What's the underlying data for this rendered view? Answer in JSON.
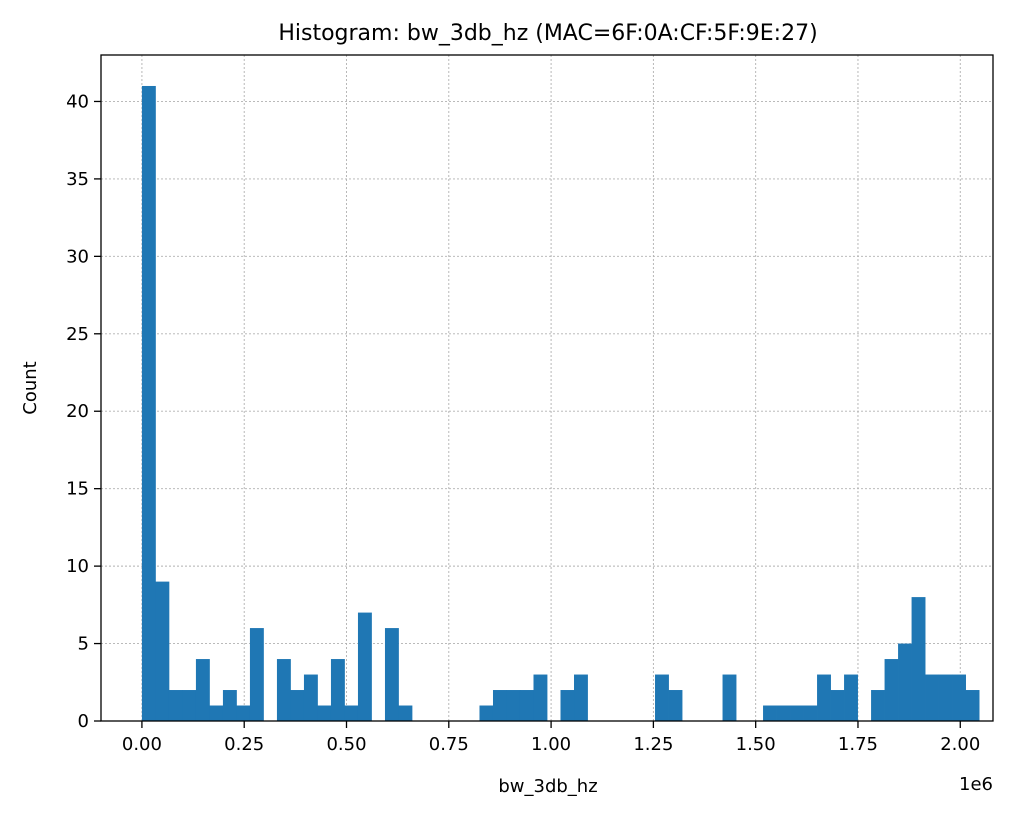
{
  "chart_data": {
    "type": "bar",
    "title": "Histogram: bw_3db_hz (MAC=6F:0A:CF:5F:9E:27)",
    "xlabel": "bw_3db_hz",
    "ylabel": "Count",
    "x_offset_text": "1e6",
    "xlim": [
      -0.1,
      2.08
    ],
    "ylim": [
      0,
      43
    ],
    "grid": true,
    "bar_color": "#1f77b4",
    "xticks": [
      0.0,
      0.25,
      0.5,
      0.75,
      1.0,
      1.25,
      1.5,
      1.75,
      2.0
    ],
    "xtick_labels": [
      "0.00",
      "0.25",
      "0.50",
      "0.75",
      "1.00",
      "1.25",
      "1.50",
      "1.75",
      "2.00"
    ],
    "yticks": [
      0,
      5,
      10,
      15,
      20,
      25,
      30,
      35,
      40
    ],
    "ytick_labels": [
      "0",
      "5",
      "10",
      "15",
      "20",
      "25",
      "30",
      "35",
      "40"
    ],
    "bin_start": 0.0,
    "bin_width": 0.033,
    "counts": [
      41,
      9,
      2,
      2,
      4,
      1,
      2,
      1,
      6,
      0,
      4,
      2,
      3,
      1,
      4,
      1,
      7,
      0,
      6,
      1,
      0,
      0,
      0,
      0,
      0,
      1,
      2,
      2,
      2,
      3,
      0,
      2,
      3,
      0,
      0,
      0,
      0,
      0,
      3,
      2,
      0,
      0,
      0,
      3,
      0,
      0,
      1,
      1,
      1,
      1,
      3,
      2,
      3,
      0,
      2,
      4,
      5,
      8,
      3,
      3,
      3,
      2
    ]
  }
}
